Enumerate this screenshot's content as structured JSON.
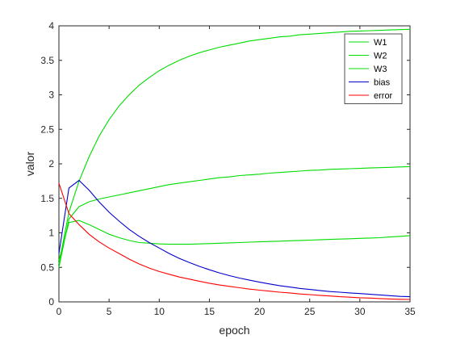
{
  "chart_data": {
    "type": "line",
    "xlabel": "epoch",
    "ylabel": "valor",
    "xlim": [
      0,
      35
    ],
    "ylim": [
      0,
      4
    ],
    "xticks": [
      0,
      5,
      10,
      15,
      20,
      25,
      30,
      35
    ],
    "yticks": [
      0,
      0.5,
      1,
      1.5,
      2,
      2.5,
      3,
      3.5,
      4
    ],
    "grid": false,
    "legend_position": "top-right",
    "series": [
      {
        "name": "W1",
        "color": "#00dd00",
        "x": [
          0,
          1,
          2,
          3,
          4,
          5,
          6,
          7,
          8,
          9,
          10,
          11,
          12,
          13,
          14,
          15,
          16,
          17,
          18,
          19,
          20,
          21,
          22,
          23,
          24,
          25,
          26,
          27,
          28,
          29,
          30,
          31,
          32,
          33,
          34,
          35
        ],
        "y": [
          0.55,
          1.3,
          1.75,
          2.1,
          2.4,
          2.64,
          2.84,
          3.0,
          3.14,
          3.25,
          3.35,
          3.43,
          3.5,
          3.56,
          3.61,
          3.65,
          3.69,
          3.72,
          3.75,
          3.78,
          3.8,
          3.82,
          3.84,
          3.85,
          3.87,
          3.88,
          3.89,
          3.9,
          3.91,
          3.92,
          3.925,
          3.93,
          3.935,
          3.94,
          3.945,
          3.95
        ]
      },
      {
        "name": "W2",
        "color": "#00dd00",
        "x": [
          0,
          1,
          2,
          3,
          4,
          5,
          6,
          7,
          8,
          9,
          10,
          11,
          12,
          13,
          14,
          15,
          16,
          17,
          18,
          19,
          20,
          21,
          22,
          23,
          24,
          25,
          26,
          27,
          28,
          29,
          30,
          31,
          32,
          33,
          34,
          35
        ],
        "y": [
          0.5,
          1.2,
          1.38,
          1.45,
          1.49,
          1.52,
          1.55,
          1.58,
          1.61,
          1.64,
          1.67,
          1.7,
          1.72,
          1.74,
          1.76,
          1.78,
          1.8,
          1.81,
          1.83,
          1.84,
          1.85,
          1.865,
          1.875,
          1.885,
          1.895,
          1.905,
          1.91,
          1.92,
          1.925,
          1.93,
          1.935,
          1.94,
          1.945,
          1.95,
          1.955,
          1.96
        ]
      },
      {
        "name": "W3",
        "color": "#00dd00",
        "x": [
          0,
          1,
          2,
          3,
          4,
          5,
          6,
          7,
          8,
          9,
          10,
          11,
          12,
          13,
          14,
          15,
          16,
          17,
          18,
          19,
          20,
          21,
          22,
          23,
          24,
          25,
          26,
          27,
          28,
          29,
          30,
          31,
          32,
          33,
          34,
          35
        ],
        "y": [
          0.6,
          1.15,
          1.18,
          1.12,
          1.05,
          0.98,
          0.93,
          0.89,
          0.86,
          0.85,
          0.84,
          0.835,
          0.835,
          0.835,
          0.84,
          0.845,
          0.85,
          0.855,
          0.86,
          0.865,
          0.87,
          0.875,
          0.88,
          0.885,
          0.89,
          0.895,
          0.9,
          0.905,
          0.91,
          0.915,
          0.92,
          0.925,
          0.93,
          0.94,
          0.95,
          0.96
        ]
      },
      {
        "name": "bias",
        "color": "#0000cc",
        "x": [
          0,
          1,
          2,
          3,
          4,
          5,
          6,
          7,
          8,
          9,
          10,
          11,
          12,
          13,
          14,
          15,
          16,
          17,
          18,
          19,
          20,
          21,
          22,
          23,
          24,
          25,
          26,
          27,
          28,
          29,
          30,
          31,
          32,
          33,
          34,
          35
        ],
        "y": [
          0.7,
          1.65,
          1.76,
          1.62,
          1.45,
          1.3,
          1.17,
          1.05,
          0.95,
          0.86,
          0.78,
          0.7,
          0.63,
          0.57,
          0.515,
          0.465,
          0.42,
          0.38,
          0.345,
          0.315,
          0.285,
          0.26,
          0.235,
          0.215,
          0.195,
          0.18,
          0.165,
          0.15,
          0.14,
          0.13,
          0.12,
          0.11,
          0.1,
          0.09,
          0.08,
          0.075
        ]
      },
      {
        "name": "error",
        "color": "#ff0000",
        "x": [
          0,
          1,
          2,
          3,
          4,
          5,
          6,
          7,
          8,
          9,
          10,
          11,
          12,
          13,
          14,
          15,
          16,
          17,
          18,
          19,
          20,
          21,
          22,
          23,
          24,
          25,
          26,
          27,
          28,
          29,
          30,
          31,
          32,
          33,
          34,
          35
        ],
        "y": [
          1.72,
          1.28,
          1.12,
          0.98,
          0.87,
          0.78,
          0.7,
          0.62,
          0.55,
          0.49,
          0.44,
          0.4,
          0.36,
          0.33,
          0.3,
          0.27,
          0.245,
          0.225,
          0.205,
          0.185,
          0.17,
          0.155,
          0.14,
          0.13,
          0.115,
          0.105,
          0.095,
          0.085,
          0.075,
          0.068,
          0.06,
          0.055,
          0.048,
          0.042,
          0.038,
          0.035
        ]
      }
    ]
  }
}
